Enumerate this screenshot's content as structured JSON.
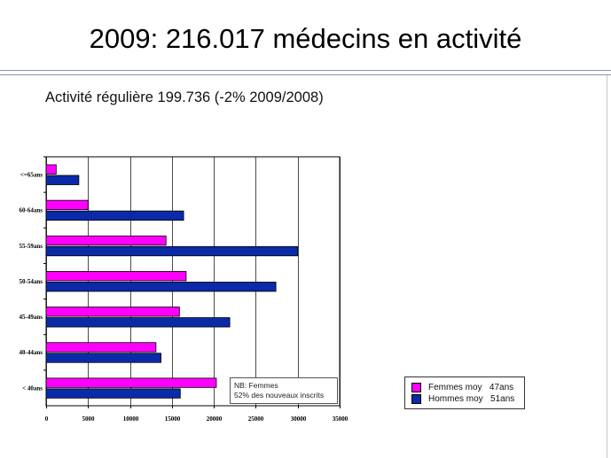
{
  "slide": {
    "title": "2009: 216.017 médecins en activité",
    "subtitle": "Activité régulière 199.736 (-2% 2009/2008)"
  },
  "note": {
    "line1": "NB: Femmes",
    "line2": "52% des nouveaux inscrits"
  },
  "colors": {
    "femmes": "#ff00ff",
    "hommes": "#0a2aa8",
    "grid": "#000000"
  },
  "chart_data": {
    "type": "bar",
    "orientation": "horizontal",
    "categories": [
      "<=65ans",
      "60-64ans",
      "55-59ans",
      "50-54ans",
      "45-49ans",
      "40-44ans",
      "< 40ans"
    ],
    "series": [
      {
        "name": "Femmes moy   47ans",
        "values": [
          1200,
          5000,
          14300,
          16700,
          15900,
          13100,
          20300
        ]
      },
      {
        "name": "Hommes moy   51ans",
        "values": [
          3900,
          16400,
          30000,
          27400,
          21900,
          13700,
          16000
        ]
      }
    ],
    "xlim": [
      0,
      35000
    ],
    "xticks": [
      "0",
      "5000",
      "10000",
      "15000",
      "20000",
      "25000",
      "30000",
      "35000"
    ],
    "grid": true,
    "legend_position": "right"
  }
}
